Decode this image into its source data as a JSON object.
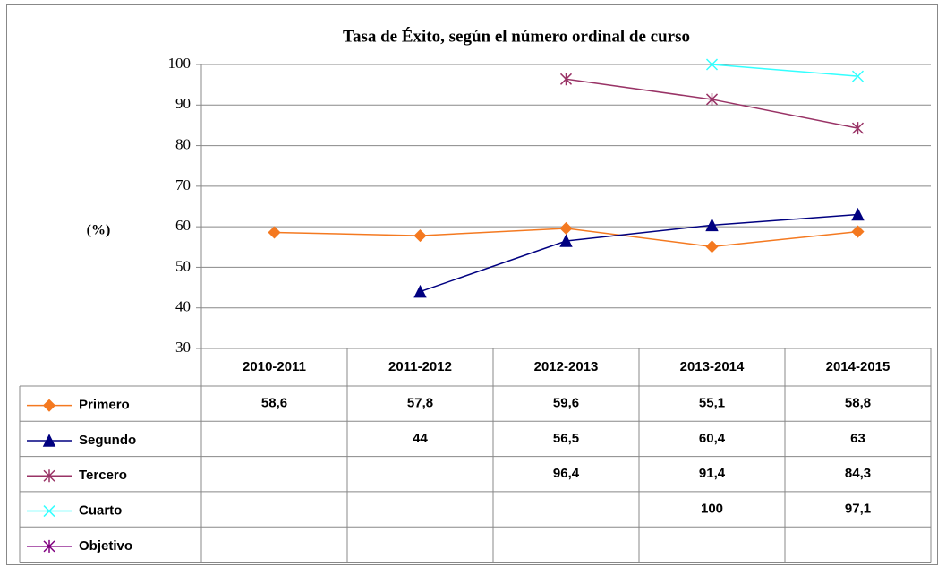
{
  "chart_data": {
    "type": "line",
    "title": "Tasa de Éxito, según el número ordinal de curso",
    "y_label": "(%)",
    "categories": [
      "2010-2011",
      "2011-2012",
      "2012-2013",
      "2013-2014",
      "2014-2015"
    ],
    "ylim": [
      30,
      100
    ],
    "yticks": [
      30,
      40,
      50,
      60,
      70,
      80,
      90,
      100
    ],
    "grid": true,
    "series": [
      {
        "name": "Primero",
        "color": "#f47920",
        "marker": "diamond",
        "values": [
          58.6,
          57.8,
          59.6,
          55.1,
          58.8
        ],
        "value_labels": [
          "58,6",
          "57,8",
          "59,6",
          "55,1",
          "58,8"
        ]
      },
      {
        "name": "Segundo",
        "color": "#000080",
        "marker": "triangle",
        "values": [
          null,
          44,
          56.5,
          60.4,
          63
        ],
        "value_labels": [
          null,
          "44",
          "56,5",
          "60,4",
          "63"
        ]
      },
      {
        "name": "Tercero",
        "color": "#993366",
        "marker": "asterisk",
        "values": [
          null,
          null,
          96.4,
          91.4,
          84.3
        ],
        "value_labels": [
          null,
          null,
          "96,4",
          "91,4",
          "84,3"
        ]
      },
      {
        "name": "Cuarto",
        "color": "#33ffff",
        "marker": "x",
        "values": [
          null,
          null,
          null,
          100,
          97.1
        ],
        "value_labels": [
          null,
          null,
          null,
          "100",
          "97,1"
        ]
      },
      {
        "name": "Objetivo",
        "color": "#800080",
        "marker": "star",
        "values": [
          null,
          null,
          null,
          null,
          null
        ],
        "value_labels": [
          null,
          null,
          null,
          null,
          null
        ]
      }
    ]
  }
}
